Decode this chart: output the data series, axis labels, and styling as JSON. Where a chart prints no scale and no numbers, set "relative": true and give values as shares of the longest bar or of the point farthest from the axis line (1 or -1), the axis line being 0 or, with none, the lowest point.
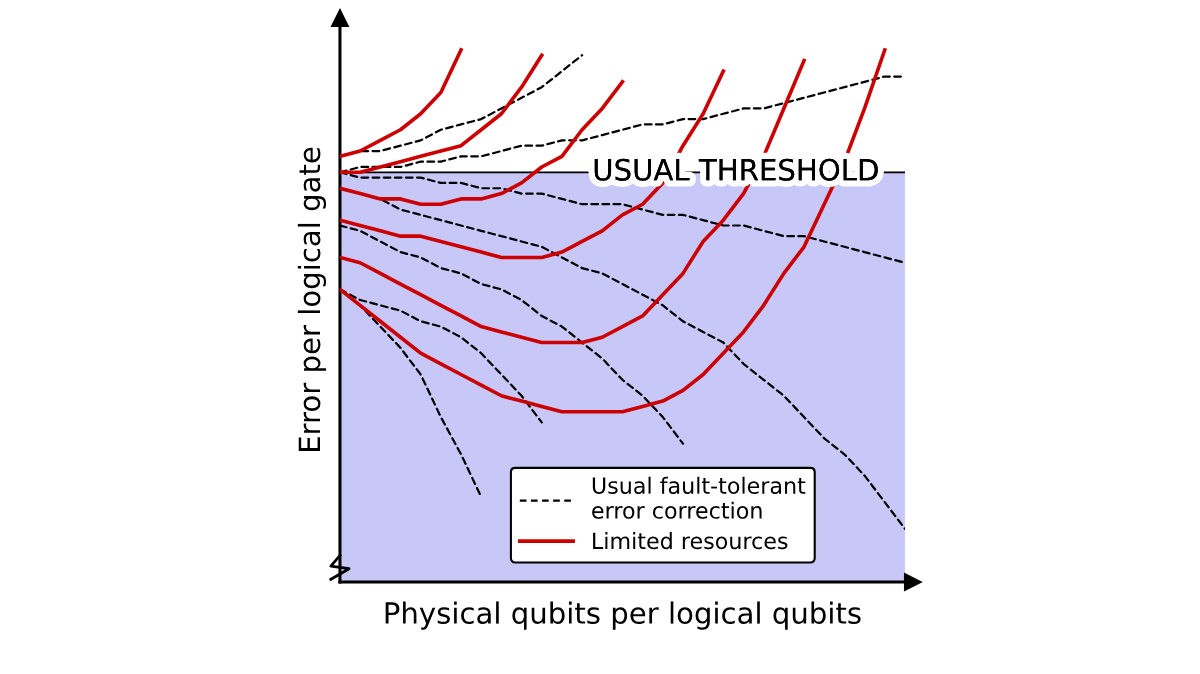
{
  "chart_data": {
    "type": "line",
    "relative": true,
    "tick_labels": false,
    "xlabel": "Physical qubits per logical qubits",
    "ylabel": "Error per logical gate",
    "legend": "bottom right",
    "categories": [
      null,
      null,
      null,
      null,
      null,
      null,
      null,
      null,
      null,
      null,
      null,
      null,
      null,
      null,
      null,
      null,
      null,
      null,
      null,
      null,
      null,
      null,
      null,
      null,
      null,
      null,
      null,
      null,
      null
    ],
    "bands": [
      {
        "axis": "y",
        "from": 0,
        "to": 0.77,
        "color": "#c8c8f8"
      }
    ],
    "ref_lines": [
      {
        "axis": "y",
        "value": 0.77,
        "label": "USUAL THRESHOLD",
        "color": "#000000"
      }
    ],
    "series": [
      {
        "name": "Usual fault-tolerant\nerror correction",
        "color": "#000000",
        "line_style": "dashed",
        "values": [
          0.8,
          0.81,
          0.81,
          0.82,
          0.83,
          0.85,
          0.86,
          0.87,
          0.89,
          0.91,
          0.93,
          0.96,
          0.99,
          null,
          null,
          null,
          null,
          null,
          null,
          null,
          null,
          null,
          null,
          null,
          null,
          null,
          null,
          null,
          null
        ]
      },
      {
        "color": "#000000",
        "line_style": "dashed",
        "values": [
          0.77,
          0.78,
          0.78,
          0.78,
          0.79,
          0.79,
          0.8,
          0.8,
          0.81,
          0.82,
          0.82,
          0.83,
          0.83,
          0.84,
          0.85,
          0.86,
          0.86,
          0.87,
          0.87,
          0.88,
          0.89,
          0.89,
          0.9,
          0.91,
          0.92,
          0.93,
          0.94,
          0.95,
          0.95
        ]
      },
      {
        "color": "#000000",
        "line_style": "dashed",
        "values": [
          0.77,
          0.76,
          0.76,
          0.76,
          0.76,
          0.75,
          0.75,
          0.74,
          0.74,
          0.73,
          0.73,
          0.72,
          0.71,
          0.71,
          0.71,
          0.7,
          0.69,
          0.69,
          0.68,
          0.67,
          0.67,
          0.66,
          0.65,
          0.65,
          0.64,
          0.63,
          0.62,
          0.61,
          0.6
        ]
      },
      {
        "color": "#000000",
        "line_style": "dashed",
        "values": [
          0.74,
          0.73,
          0.72,
          0.7,
          0.69,
          0.68,
          0.67,
          0.66,
          0.65,
          0.64,
          0.63,
          0.61,
          0.59,
          0.58,
          0.56,
          0.54,
          0.52,
          0.49,
          0.47,
          0.45,
          0.41,
          0.38,
          0.35,
          0.31,
          0.27,
          0.24,
          0.2,
          0.15,
          0.1
        ]
      },
      {
        "color": "#000000",
        "line_style": "dashed",
        "values": [
          0.67,
          0.66,
          0.64,
          0.62,
          0.61,
          0.59,
          0.58,
          0.56,
          0.55,
          0.53,
          0.5,
          0.48,
          0.45,
          0.42,
          0.38,
          0.35,
          0.31,
          0.26,
          null,
          null,
          null,
          null,
          null,
          null,
          null,
          null,
          null,
          null,
          null
        ]
      },
      {
        "color": "#000000",
        "line_style": "dashed",
        "values": [
          0.55,
          0.53,
          0.52,
          0.51,
          0.49,
          0.48,
          0.46,
          0.43,
          0.39,
          0.35,
          0.3,
          null,
          null,
          null,
          null,
          null,
          null,
          null,
          null,
          null,
          null,
          null,
          null,
          null,
          null,
          null,
          null,
          null,
          null
        ]
      },
      {
        "color": "#000000",
        "line_style": "dashed",
        "values": [
          0.55,
          0.52,
          0.48,
          0.44,
          0.39,
          0.31,
          0.24,
          0.16,
          null,
          null,
          null,
          null,
          null,
          null,
          null,
          null,
          null,
          null,
          null,
          null,
          null,
          null,
          null,
          null,
          null,
          null,
          null,
          null,
          null
        ]
      },
      {
        "name": "Limited resources",
        "color": "#cc0000",
        "line_style": "solid",
        "values": [
          0.8,
          0.81,
          0.83,
          0.85,
          0.88,
          0.92,
          1.0,
          null,
          null,
          null,
          null,
          null,
          null,
          null,
          null,
          null,
          null,
          null,
          null,
          null,
          null,
          null,
          null,
          null,
          null,
          null,
          null,
          null,
          null
        ]
      },
      {
        "color": "#cc0000",
        "line_style": "solid",
        "values": [
          0.77,
          0.77,
          0.78,
          0.79,
          0.8,
          0.81,
          0.82,
          0.85,
          0.88,
          0.93,
          0.99,
          null,
          null,
          null,
          null,
          null,
          null,
          null,
          null,
          null,
          null,
          null,
          null,
          null,
          null,
          null,
          null,
          null,
          null
        ]
      },
      {
        "color": "#cc0000",
        "line_style": "solid",
        "values": [
          0.74,
          0.73,
          0.72,
          0.72,
          0.71,
          0.71,
          0.72,
          0.72,
          0.73,
          0.75,
          0.78,
          0.8,
          0.85,
          0.89,
          0.94,
          null,
          null,
          null,
          null,
          null,
          null,
          null,
          null,
          null,
          null,
          null,
          null,
          null,
          null
        ]
      },
      {
        "color": "#cc0000",
        "line_style": "solid",
        "values": [
          0.68,
          0.67,
          0.66,
          0.65,
          0.65,
          0.64,
          0.63,
          0.62,
          0.61,
          0.61,
          0.61,
          0.62,
          0.64,
          0.66,
          0.69,
          0.71,
          0.75,
          0.82,
          0.88,
          0.96,
          null,
          null,
          null,
          null,
          null,
          null,
          null,
          null,
          null
        ]
      },
      {
        "color": "#cc0000",
        "line_style": "solid",
        "values": [
          0.61,
          0.6,
          0.58,
          0.56,
          0.54,
          0.52,
          0.5,
          0.48,
          0.47,
          0.46,
          0.45,
          0.45,
          0.45,
          0.46,
          0.48,
          0.5,
          0.54,
          0.58,
          0.64,
          0.68,
          0.73,
          0.8,
          0.89,
          0.98,
          null,
          null,
          null,
          null,
          null
        ]
      },
      {
        "color": "#cc0000",
        "line_style": "solid",
        "values": [
          0.55,
          0.52,
          0.49,
          0.46,
          0.43,
          0.41,
          0.39,
          0.37,
          0.35,
          0.34,
          0.33,
          0.32,
          0.32,
          0.32,
          0.32,
          0.33,
          0.34,
          0.36,
          0.39,
          0.43,
          0.47,
          0.52,
          0.58,
          0.63,
          0.71,
          0.79,
          0.89,
          1.0,
          null
        ]
      }
    ]
  }
}
